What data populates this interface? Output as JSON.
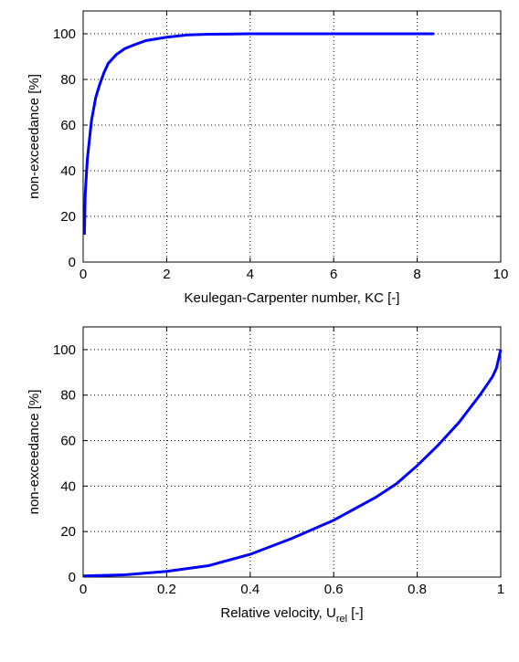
{
  "chart_data": [
    {
      "type": "line",
      "xlabel": "Keulegan-Carpenter number, KC [-]",
      "ylabel": "non-exceedance [%]",
      "color": "#0000ff",
      "grid": true,
      "x": [
        0.03,
        0.05,
        0.1,
        0.2,
        0.3,
        0.4,
        0.5,
        0.6,
        0.8,
        1,
        1.2,
        1.5,
        2,
        2.5,
        3,
        4,
        6,
        8.4
      ],
      "values": [
        12,
        30,
        45,
        62,
        72,
        78,
        83,
        87,
        91,
        93.5,
        95,
        97,
        98.5,
        99.5,
        99.8,
        100,
        100,
        100
      ],
      "xlim": [
        0,
        10
      ],
      "xticks": [
        0,
        2,
        4,
        6,
        8,
        10
      ],
      "ylim": [
        0,
        110
      ],
      "yticks": [
        0,
        20,
        40,
        60,
        80,
        100
      ]
    },
    {
      "type": "line",
      "xlabel": {
        "text": "Relative velocity, U",
        "subscript": "rel",
        "suffix": " [-]"
      },
      "ylabel": "non-exceedance [%]",
      "color": "#0000ff",
      "grid": true,
      "x": [
        0,
        0.1,
        0.2,
        0.3,
        0.4,
        0.5,
        0.6,
        0.7,
        0.75,
        0.8,
        0.85,
        0.9,
        0.95,
        0.98,
        0.99,
        1
      ],
      "values": [
        0.5,
        1,
        2.5,
        5,
        10,
        17,
        25,
        35,
        41,
        49,
        58,
        68,
        80,
        88,
        92,
        100
      ],
      "xlim": [
        0,
        1
      ],
      "xticks": [
        0,
        0.2,
        0.4,
        0.6,
        0.8,
        1
      ],
      "ylim": [
        0,
        110
      ],
      "yticks": [
        0,
        20,
        40,
        60,
        80,
        100
      ]
    }
  ]
}
